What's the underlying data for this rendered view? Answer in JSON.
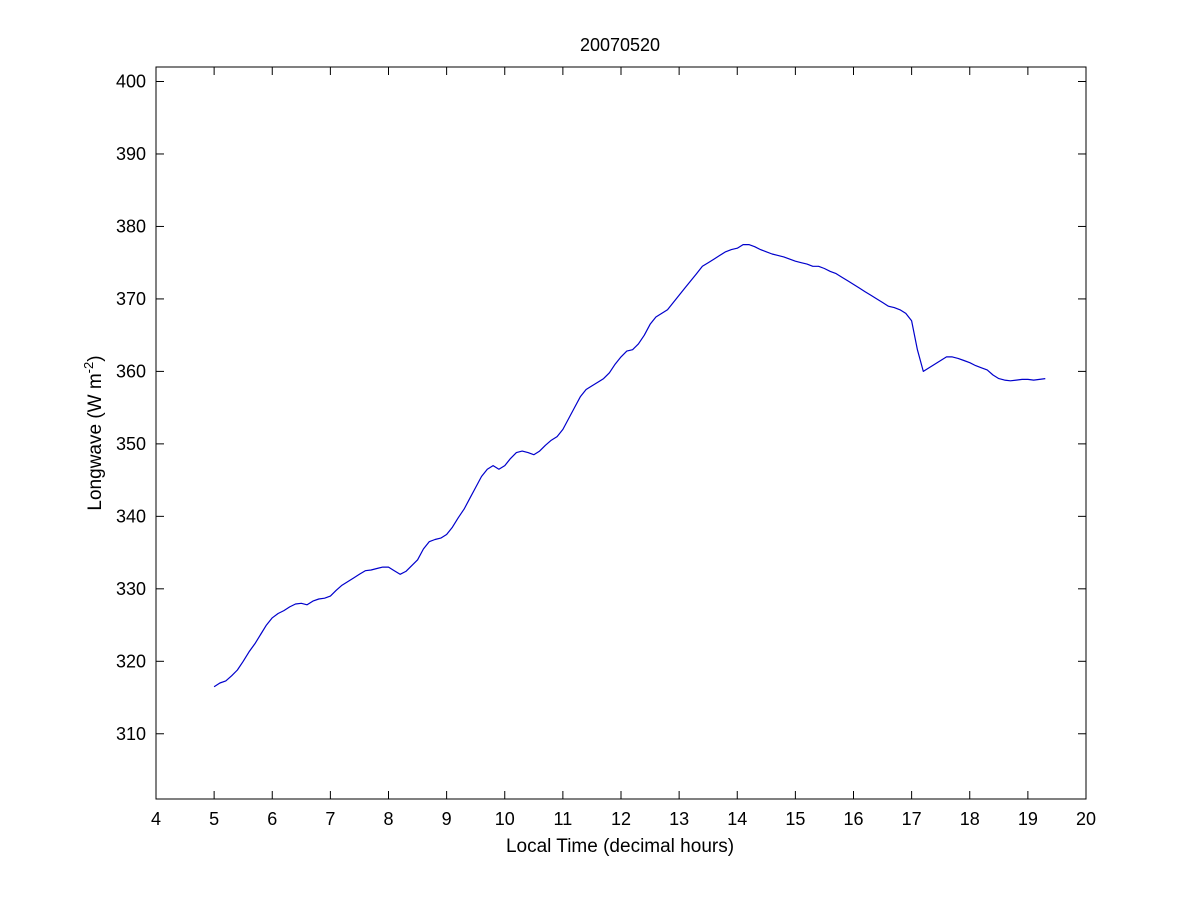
{
  "chart_data": {
    "type": "line",
    "title": "20070520",
    "xlabel": "Local Time (decimal hours)",
    "ylabel": {
      "main": "Longwave (W m",
      "superscript": "-2",
      "close": ")"
    },
    "xlim": [
      4,
      20
    ],
    "ylim": [
      301,
      402
    ],
    "xticks": [
      4,
      5,
      6,
      7,
      8,
      9,
      10,
      11,
      12,
      13,
      14,
      15,
      16,
      17,
      18,
      19,
      20
    ],
    "yticks": [
      310,
      320,
      330,
      340,
      350,
      360,
      370,
      380,
      390,
      400
    ],
    "grid": false,
    "legend": "none",
    "line_color": "#0000cc",
    "axes_color": "#000000",
    "series": [
      {
        "x": [
          5.0,
          5.1,
          5.2,
          5.3,
          5.4,
          5.5,
          5.6,
          5.7,
          5.8,
          5.9,
          6.0,
          6.1,
          6.2,
          6.3,
          6.4,
          6.5,
          6.6,
          6.7,
          6.8,
          6.9,
          7.0,
          7.1,
          7.2,
          7.3,
          7.4,
          7.5,
          7.6,
          7.7,
          7.8,
          7.9,
          8.0,
          8.1,
          8.2,
          8.3,
          8.4,
          8.5,
          8.6,
          8.7,
          8.8,
          8.9,
          9.0,
          9.1,
          9.2,
          9.3,
          9.4,
          9.5,
          9.6,
          9.7,
          9.8,
          9.9,
          10.0,
          10.1,
          10.2,
          10.3,
          10.4,
          10.5,
          10.6,
          10.7,
          10.8,
          10.9,
          11.0,
          11.1,
          11.2,
          11.3,
          11.4,
          11.5,
          11.6,
          11.7,
          11.8,
          11.9,
          12.0,
          12.1,
          12.2,
          12.3,
          12.4,
          12.5,
          12.6,
          12.7,
          12.8,
          12.9,
          13.0,
          13.1,
          13.2,
          13.3,
          13.4,
          13.5,
          13.6,
          13.7,
          13.8,
          13.9,
          14.0,
          14.1,
          14.2,
          14.3,
          14.4,
          14.5,
          14.6,
          14.7,
          14.8,
          14.9,
          15.0,
          15.1,
          15.2,
          15.3,
          15.4,
          15.5,
          15.6,
          15.7,
          15.8,
          15.9,
          16.0,
          16.1,
          16.2,
          16.3,
          16.4,
          16.5,
          16.6,
          16.7,
          16.8,
          16.9,
          17.0,
          17.1,
          17.2,
          17.3,
          17.4,
          17.5,
          17.6,
          17.7,
          17.8,
          17.9,
          18.0,
          18.1,
          18.2,
          18.3,
          18.4,
          18.5,
          18.6,
          18.7,
          18.8,
          18.9,
          19.0,
          19.1,
          19.2,
          19.3
        ],
        "values": [
          316.5,
          317.0,
          317.3,
          318.0,
          318.8,
          320.0,
          321.3,
          322.4,
          323.7,
          325.0,
          326.0,
          326.6,
          327.0,
          327.5,
          327.9,
          328.0,
          327.8,
          328.3,
          328.6,
          328.7,
          329.0,
          329.8,
          330.5,
          331.0,
          331.5,
          332.0,
          332.5,
          332.6,
          332.8,
          333.0,
          333.0,
          332.5,
          332.0,
          332.4,
          333.2,
          334.0,
          335.5,
          336.5,
          336.8,
          337.0,
          337.5,
          338.5,
          339.8,
          341.0,
          342.5,
          344.0,
          345.5,
          346.5,
          347.0,
          346.5,
          347.0,
          348.0,
          348.8,
          349.0,
          348.8,
          348.5,
          349.0,
          349.8,
          350.5,
          351.0,
          352.0,
          353.5,
          355.0,
          356.5,
          357.5,
          358.0,
          358.5,
          359.0,
          359.8,
          361.0,
          362.0,
          362.8,
          363.0,
          363.8,
          365.0,
          366.5,
          367.5,
          368.0,
          368.5,
          369.5,
          370.5,
          371.5,
          372.5,
          373.5,
          374.5,
          375.0,
          375.5,
          376.0,
          376.5,
          376.8,
          377.0,
          377.5,
          377.5,
          377.2,
          376.8,
          376.5,
          376.2,
          376.0,
          375.8,
          375.5,
          375.2,
          375.0,
          374.8,
          374.5,
          374.5,
          374.2,
          373.8,
          373.5,
          373.0,
          372.5,
          372.0,
          371.5,
          371.0,
          370.5,
          370.0,
          369.5,
          369.0,
          368.8,
          368.5,
          368.0,
          367.0,
          363.0,
          360.0,
          360.5,
          361.0,
          361.5,
          362.0,
          362.0,
          361.8,
          361.5,
          361.2,
          360.8,
          360.5,
          360.2,
          359.5,
          359.0,
          358.8,
          358.7,
          358.8,
          358.9,
          358.9,
          358.8,
          358.9,
          359.0
        ]
      }
    ]
  }
}
